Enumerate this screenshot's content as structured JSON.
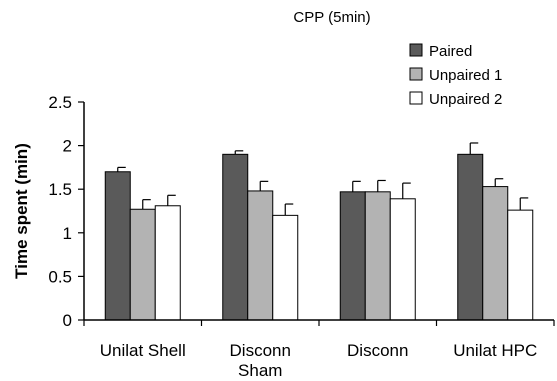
{
  "chart_data": {
    "type": "bar",
    "title": "CPP (5min)",
    "xlabel": "",
    "ylabel": "Time spent (min)",
    "ylim": [
      0,
      2.5
    ],
    "yticks": [
      0,
      0.5,
      1,
      1.5,
      2,
      2.5
    ],
    "ytick_labels": [
      "0",
      "0.5",
      "1",
      "1.5",
      "2",
      "2.5"
    ],
    "categories": [
      [
        "Unilat Shell"
      ],
      [
        "Disconn",
        "Sham"
      ],
      [
        "Disconn"
      ],
      [
        "Unilat HPC"
      ]
    ],
    "series": [
      {
        "name": "Paired",
        "color": "#5a5a5a",
        "values": [
          1.7,
          1.9,
          1.47,
          1.9
        ],
        "errors": [
          0.05,
          0.04,
          0.12,
          0.13
        ]
      },
      {
        "name": "Unpaired 1",
        "color": "#b3b3b3",
        "values": [
          1.27,
          1.48,
          1.47,
          1.53
        ],
        "errors": [
          0.11,
          0.11,
          0.13,
          0.09
        ]
      },
      {
        "name": "Unpaired 2",
        "color": "#ffffff",
        "values": [
          1.31,
          1.2,
          1.39,
          1.26
        ],
        "errors": [
          0.12,
          0.13,
          0.18,
          0.14
        ]
      }
    ],
    "legend": "top-right",
    "grid": false
  }
}
